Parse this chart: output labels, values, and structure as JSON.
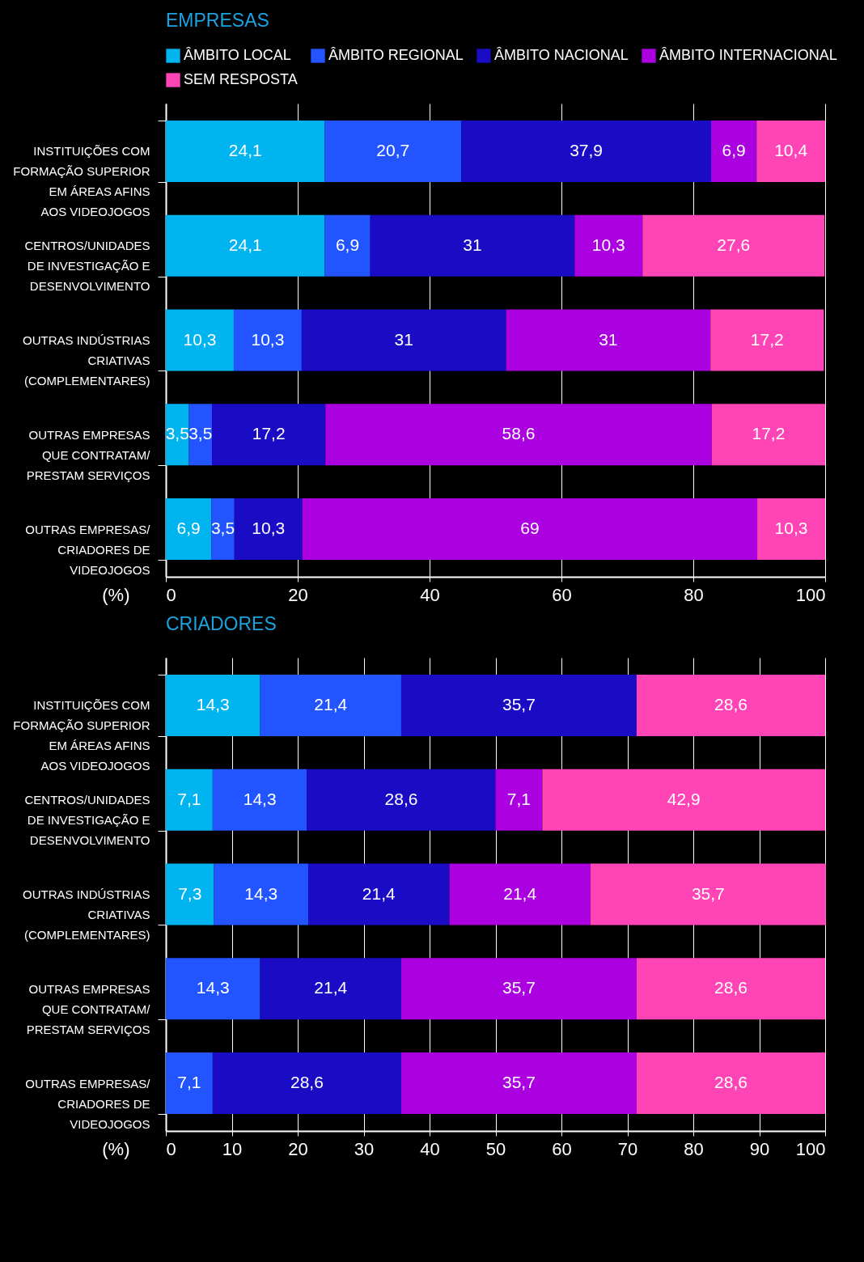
{
  "chart_data": [
    {
      "type": "bar",
      "orientation": "horizontal",
      "stacked": true,
      "title": "EMPRESAS",
      "xlabel": "(%)",
      "categories": [
        "INSTITUIÇÕES COM FORMAÇÃO SUPERIOR EM ÁREAS AFINS AOS VIDEOJOGOS",
        "CENTROS/UNIDADES DE INVESTIGAÇÃO E DESENVOLVIMENTO",
        "OUTRAS INDÚSTRIAS CRIATIVAS (COMPLEMENTARES)",
        "OUTRAS EMPRESAS QUE CONTRATAM/ PRESTAM SERVIÇOS",
        "OUTRAS EMPRESAS/ CRIADORES DE VIDEOJOGOS"
      ],
      "series": [
        {
          "name": "ÂMBITO LOCAL",
          "color": "#00b4f0",
          "values": [
            24.1,
            24.1,
            10.3,
            3.5,
            6.9
          ],
          "value_labels": [
            "24,1",
            "24,1",
            "10,3",
            "3,5",
            "6,9"
          ]
        },
        {
          "name": "ÂMBITO REGIONAL",
          "color": "#2255ff",
          "values": [
            20.7,
            6.9,
            10.3,
            3.5,
            3.5
          ],
          "value_labels": [
            "20,7",
            "6,9",
            "10,3",
            "3,5",
            "3,5"
          ]
        },
        {
          "name": "ÂMBITO NACIONAL",
          "color": "#1a0cc4",
          "values": [
            37.9,
            31,
            31,
            17.2,
            10.3
          ],
          "value_labels": [
            "37,9",
            "31",
            "31",
            "17,2",
            "10,3"
          ]
        },
        {
          "name": "ÂMBITO INTERNACIONAL",
          "color": "#ab00e0",
          "values": [
            6.9,
            10.3,
            31,
            58.6,
            69
          ],
          "value_labels": [
            "6,9",
            "10,3",
            "31",
            "58,6",
            "69"
          ]
        },
        {
          "name": "SEM RESPOSTA",
          "color": "#ff44b6",
          "values": [
            10.4,
            27.6,
            17.2,
            17.2,
            10.3
          ],
          "value_labels": [
            "10,4",
            "27,6",
            "17,2",
            "17,2",
            "10,3"
          ]
        }
      ],
      "xlim": [
        0,
        100
      ],
      "xticks": [
        0,
        20,
        40,
        60,
        80,
        100
      ],
      "grid": "x",
      "legend": "top right"
    },
    {
      "type": "bar",
      "orientation": "horizontal",
      "stacked": true,
      "title": "CRIADORES",
      "xlabel": "(%)",
      "categories": [
        "INSTITUIÇÕES COM FORMAÇÃO SUPERIOR EM ÁREAS AFINS AOS VIDEOJOGOS",
        "CENTROS/UNIDADES DE INVESTIGAÇÃO E DESENVOLVIMENTO",
        "OUTRAS INDÚSTRIAS CRIATIVAS (COMPLEMENTARES)",
        "OUTRAS EMPRESAS QUE CONTRATAM/ PRESTAM SERVIÇOS",
        "OUTRAS EMPRESAS/ CRIADORES DE VIDEOJOGOS"
      ],
      "series": [
        {
          "name": "ÂMBITO LOCAL",
          "color": "#00b4f0",
          "values": [
            14.3,
            7.1,
            7.3,
            null,
            null
          ],
          "value_labels": [
            "14,3",
            "7,1",
            "7,3",
            null,
            null
          ]
        },
        {
          "name": "ÂMBITO REGIONAL",
          "color": "#2255ff",
          "values": [
            21.4,
            14.3,
            14.3,
            14.3,
            7.1
          ],
          "value_labels": [
            "21,4",
            "14,3",
            "14,3",
            "14,3",
            "7,1"
          ]
        },
        {
          "name": "ÂMBITO NACIONAL",
          "color": "#1a0cc4",
          "values": [
            35.7,
            28.6,
            21.4,
            21.4,
            28.6
          ],
          "value_labels": [
            "35,7",
            "28,6",
            "21,4",
            "21,4",
            "28,6"
          ]
        },
        {
          "name": "ÂMBITO INTERNACIONAL",
          "color": "#ab00e0",
          "values": [
            null,
            7.1,
            21.4,
            35.7,
            35.7
          ],
          "value_labels": [
            null,
            "7,1",
            "21,4",
            "35,7",
            "35,7"
          ]
        },
        {
          "name": "SEM RESPOSTA",
          "color": "#ff44b6",
          "values": [
            28.6,
            42.9,
            35.7,
            28.6,
            28.6
          ],
          "value_labels": [
            "28,6",
            "42,9",
            "35,7",
            "28,6",
            "28,6"
          ]
        }
      ],
      "xlim": [
        0,
        100
      ],
      "xticks": [
        0,
        10,
        20,
        30,
        40,
        50,
        60,
        70,
        80,
        90,
        100
      ],
      "grid": "x"
    }
  ]
}
